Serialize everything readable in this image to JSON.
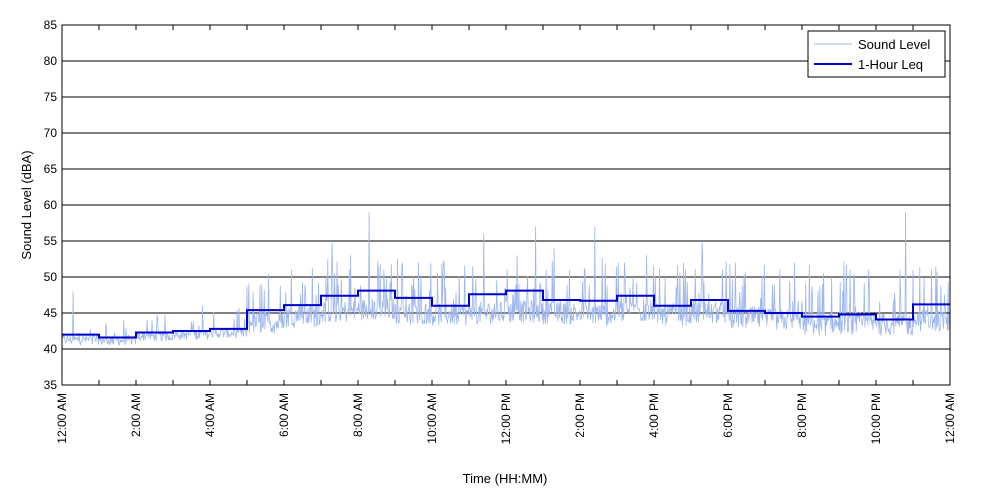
{
  "chart_data": {
    "type": "line",
    "title": "",
    "xlabel": "Time (HH:MM)",
    "ylabel": "Sound Level (dBA)",
    "ylim": [
      35,
      85
    ],
    "yticks": [
      "35",
      "40",
      "45",
      "50",
      "55",
      "60",
      "65",
      "70",
      "75",
      "80",
      "85"
    ],
    "xlim_hours": [
      0,
      24
    ],
    "xtick_labels": [
      "12:00 AM",
      "2:00 AM",
      "4:00 AM",
      "6:00 AM",
      "8:00 AM",
      "10:00 AM",
      "12:00 PM",
      "2:00 PM",
      "4:00 PM",
      "6:00 PM",
      "8:00 PM",
      "10:00 PM",
      "12:00 AM"
    ],
    "grid": "horizontal",
    "legend_position": "top-right",
    "colors": {
      "sound_level": "#9db6f0",
      "leq": "#0000cc"
    },
    "series": [
      {
        "name": "Sound Level",
        "key": "sound_level",
        "style": "thin",
        "hourly_base": [
          41.3,
          41.2,
          41.8,
          42.0,
          42.2,
          43.6,
          44.6,
          45.2,
          45.5,
          45.0,
          44.8,
          45.0,
          45.2,
          45.0,
          44.8,
          45.2,
          44.8,
          45.0,
          44.3,
          44.0,
          43.4,
          43.5,
          43.4,
          44.0
        ],
        "peaks": [
          [
            0.3,
            48
          ],
          [
            1.2,
            43
          ],
          [
            2.3,
            44
          ],
          [
            3.8,
            46
          ],
          [
            5.4,
            49
          ],
          [
            6.2,
            51
          ],
          [
            7.3,
            55
          ],
          [
            7.8,
            53
          ],
          [
            8.3,
            59
          ],
          [
            8.7,
            51
          ],
          [
            9.2,
            52
          ],
          [
            9.7,
            50
          ],
          [
            10.3,
            51
          ],
          [
            11.4,
            56
          ],
          [
            12.3,
            53
          ],
          [
            12.8,
            57
          ],
          [
            13.3,
            54
          ],
          [
            14.4,
            57
          ],
          [
            15.2,
            52
          ],
          [
            15.8,
            53
          ],
          [
            16.3,
            50
          ],
          [
            16.8,
            52
          ],
          [
            17.3,
            55
          ],
          [
            18.2,
            52
          ],
          [
            19.4,
            51
          ],
          [
            19.8,
            52
          ],
          [
            20.8,
            50
          ],
          [
            21.3,
            51
          ],
          [
            21.8,
            51
          ],
          [
            22.8,
            59
          ],
          [
            23.5,
            51
          ]
        ]
      },
      {
        "name": "1-Hour Leq",
        "key": "leq",
        "style": "step",
        "hours": [
          0,
          1,
          2,
          3,
          4,
          5,
          6,
          7,
          8,
          9,
          10,
          11,
          12,
          13,
          14,
          15,
          16,
          17,
          18,
          19,
          20,
          21,
          22,
          23
        ],
        "values": [
          42.0,
          41.6,
          42.3,
          42.5,
          42.8,
          45.4,
          46.1,
          47.4,
          48.1,
          47.1,
          46.0,
          47.6,
          48.1,
          46.8,
          46.7,
          47.4,
          46.0,
          46.8,
          45.3,
          45.0,
          44.5,
          44.8,
          44.1,
          46.2
        ]
      }
    ]
  }
}
